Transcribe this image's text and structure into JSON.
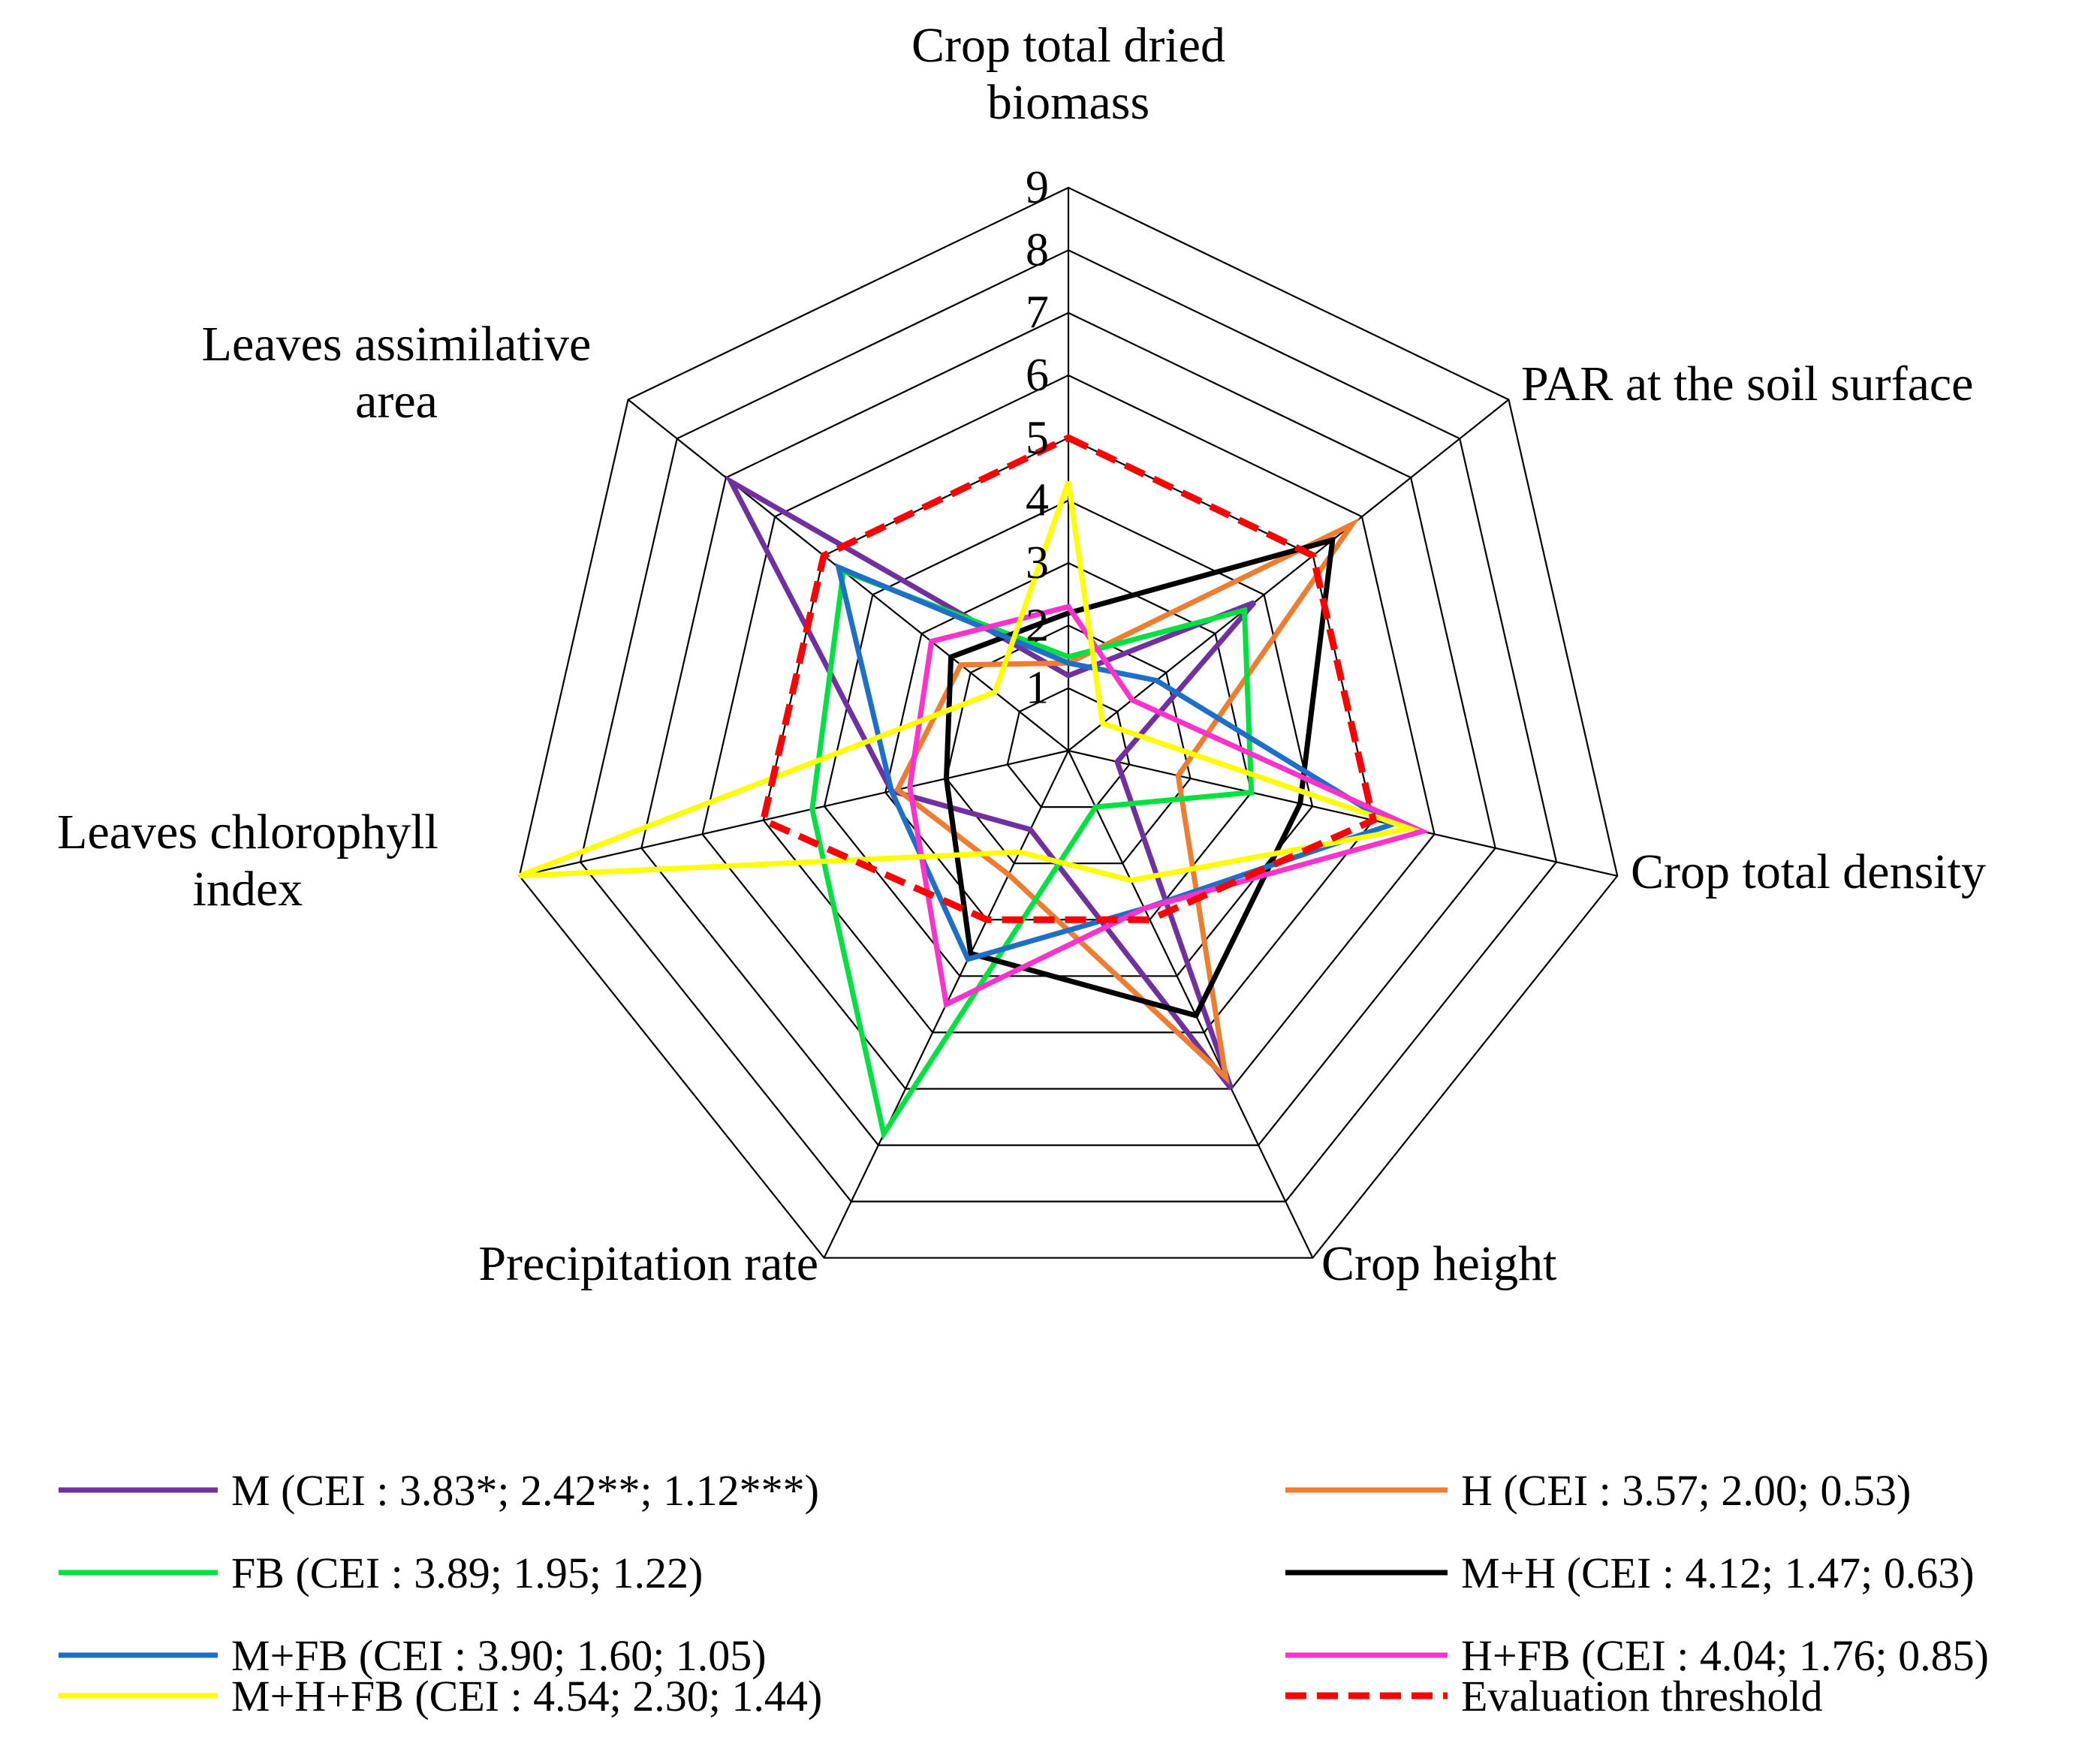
{
  "chart_data": {
    "type": "radar",
    "title": "",
    "axes": [
      {
        "label_lines": [
          "Crop total dried",
          "biomass"
        ]
      },
      {
        "label_lines": [
          "PAR at the soil surface"
        ]
      },
      {
        "label_lines": [
          "Crop total density"
        ]
      },
      {
        "label_lines": [
          "Crop height"
        ]
      },
      {
        "label_lines": [
          "Precipitation rate"
        ]
      },
      {
        "label_lines": [
          "Leaves chlorophyll",
          "index"
        ]
      },
      {
        "label_lines": [
          "Leaves assimilative",
          "area"
        ]
      }
    ],
    "rlim": [
      0,
      9
    ],
    "ticks": [
      "1",
      "2",
      "3",
      "4",
      "5",
      "6",
      "7",
      "8",
      "9"
    ],
    "series": [
      {
        "name": "M",
        "legend": "M (CEI : 3.83*; 2.42**; 1.12***)",
        "color": "#7030A0",
        "dashed": false,
        "values": [
          1.2,
          3.8,
          0.8,
          6.0,
          1.4,
          2.9,
          6.9
        ]
      },
      {
        "name": "H",
        "legend": "H (CEI : 3.57; 2.00; 0.53)",
        "color": "#ED7D31",
        "dashed": false,
        "values": [
          1.4,
          5.8,
          1.8,
          5.8,
          2.2,
          2.8,
          2.2
        ]
      },
      {
        "name": "FB",
        "legend": "FB (CEI : 3.89; 1.95; 1.22)",
        "color": "#00E040",
        "dashed": false,
        "values": [
          1.5,
          3.6,
          3.0,
          1.0,
          6.8,
          4.2,
          4.6
        ]
      },
      {
        "name": "M+H",
        "legend": "M+H (CEI : 4.12; 1.47; 0.63)",
        "color": "#000000",
        "dashed": false,
        "values": [
          2.2,
          5.4,
          3.8,
          4.7,
          3.6,
          2.0,
          2.4
        ]
      },
      {
        "name": "M+FB",
        "legend": "M+FB (CEI : 3.90; 1.60; 1.05)",
        "color": "#1F6FC8",
        "dashed": false,
        "values": [
          1.4,
          1.8,
          5.3,
          2.8,
          3.7,
          2.9,
          4.7
        ]
      },
      {
        "name": "H+FB",
        "legend": "H+FB (CEI : 4.04; 1.76; 0.85)",
        "color": "#FF33CC",
        "dashed": false,
        "values": [
          2.3,
          1.3,
          5.8,
          2.8,
          4.5,
          2.6,
          2.8
        ]
      },
      {
        "name": "M+H+FB",
        "legend": "M+H+FB (CEI : 4.54; 2.30; 1.44)",
        "color": "#FFFF00",
        "dashed": false,
        "values": [
          4.3,
          0.7,
          5.6,
          2.3,
          1.8,
          9.0,
          1.5
        ]
      },
      {
        "name": "Evaluation threshold",
        "legend": "Evaluation threshold",
        "color": "#FF0000",
        "dashed": true,
        "values": [
          5.0,
          5.0,
          5.0,
          3.0,
          3.0,
          5.0,
          5.0
        ]
      }
    ],
    "legend_position": "bottom"
  }
}
